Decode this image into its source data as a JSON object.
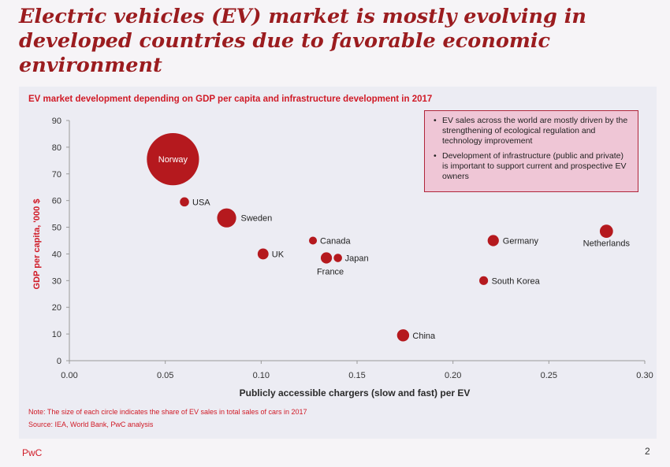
{
  "slide": {
    "title": "Electric vehicles (EV) market is mostly evolving in developed countries due to favorable economic environment",
    "footer_brand": "PwC",
    "page_number": "2"
  },
  "callout": {
    "bullets": [
      "EV sales across the world are mostly driven by the strengthening of ecological regulation and technology improvement",
      "Development of infrastructure (public and private) is important to support current and prospective EV owners"
    ]
  },
  "chart_data": {
    "type": "scatter",
    "title": "EV market development depending on GDP per capita and infrastructure development in 2017",
    "xlabel": "Publicly accessible chargers (slow and fast) per EV",
    "ylabel": "GDP per capita, '000 $",
    "xlim": [
      0,
      0.3
    ],
    "ylim": [
      0,
      90
    ],
    "xticks": [
      "0.00",
      "0.05",
      "0.10",
      "0.15",
      "0.20",
      "0.25",
      "0.30"
    ],
    "yticks": [
      "0",
      "10",
      "20",
      "30",
      "40",
      "50",
      "60",
      "70",
      "80",
      "90"
    ],
    "grid": false,
    "note": "Note: The size of each circle indicates the share of EV sales in total sales of cars in 2017",
    "source": "Source: IEA, World Bank, PwC analysis",
    "color": "#b5191e",
    "points": [
      {
        "label": "Norway",
        "x": 0.054,
        "y": 75.5,
        "size": 39
      },
      {
        "label": "USA",
        "x": 0.06,
        "y": 59.5,
        "size": 1.2
      },
      {
        "label": "Sweden",
        "x": 0.082,
        "y": 53.5,
        "size": 5.2
      },
      {
        "label": "Canada",
        "x": 0.127,
        "y": 45,
        "size": 0.9
      },
      {
        "label": "UK",
        "x": 0.101,
        "y": 40,
        "size": 1.7
      },
      {
        "label": "France",
        "x": 0.134,
        "y": 38.5,
        "size": 1.8
      },
      {
        "label": "Japan",
        "x": 0.14,
        "y": 38.5,
        "size": 1.0
      },
      {
        "label": "Germany",
        "x": 0.221,
        "y": 45,
        "size": 1.8
      },
      {
        "label": "Netherlands",
        "x": 0.28,
        "y": 48.5,
        "size": 2.5
      },
      {
        "label": "South Korea",
        "x": 0.216,
        "y": 30,
        "size": 1.1
      },
      {
        "label": "China",
        "x": 0.174,
        "y": 9.5,
        "size": 2.1
      }
    ]
  }
}
